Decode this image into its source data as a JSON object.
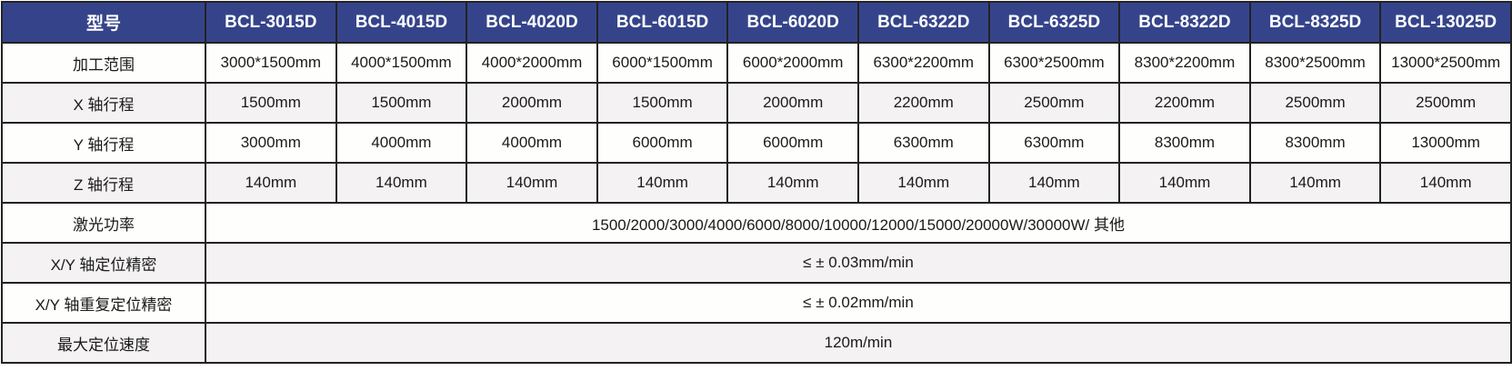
{
  "header": {
    "label": "型号",
    "models": [
      "BCL-3015D",
      "BCL-4015D",
      "BCL-4020D",
      "BCL-6015D",
      "BCL-6020D",
      "BCL-6322D",
      "BCL-6325D",
      "BCL-8322D",
      "BCL-8325D",
      "BCL-13025D"
    ]
  },
  "rows": [
    {
      "label": "加工范围",
      "values": [
        "3000*1500mm",
        "4000*1500mm",
        "4000*2000mm",
        "6000*1500mm",
        "6000*2000mm",
        "6300*2200mm",
        "6300*2500mm",
        "8300*2200mm",
        "8300*2500mm",
        "13000*2500mm"
      ]
    },
    {
      "label": "X 轴行程",
      "values": [
        "1500mm",
        "1500mm",
        "2000mm",
        "1500mm",
        "2000mm",
        "2200mm",
        "2500mm",
        "2200mm",
        "2500mm",
        "2500mm"
      ]
    },
    {
      "label": "Y 轴行程",
      "values": [
        "3000mm",
        "4000mm",
        "4000mm",
        "6000mm",
        "6000mm",
        "6300mm",
        "6300mm",
        "8300mm",
        "8300mm",
        "13000mm"
      ]
    },
    {
      "label": "Z 轴行程",
      "values": [
        "140mm",
        "140mm",
        "140mm",
        "140mm",
        "140mm",
        "140mm",
        "140mm",
        "140mm",
        "140mm",
        "140mm"
      ]
    }
  ],
  "merged_rows": [
    {
      "label": "激光功率",
      "value": "1500/2000/3000/4000/6000/8000/10000/12000/15000/20000W/30000W/ 其他"
    },
    {
      "label": "X/Y 轴定位精密",
      "value": "≤ ± 0.03mm/min"
    },
    {
      "label": "X/Y 轴重复定位精密",
      "value": "≤ ± 0.02mm/min"
    },
    {
      "label": "最大定位速度",
      "value": "120m/min"
    }
  ],
  "colors": {
    "header_bg": "#35448a",
    "header_text": "#ffffff",
    "row_alt": "#f4f2f2",
    "border": "#222222"
  }
}
